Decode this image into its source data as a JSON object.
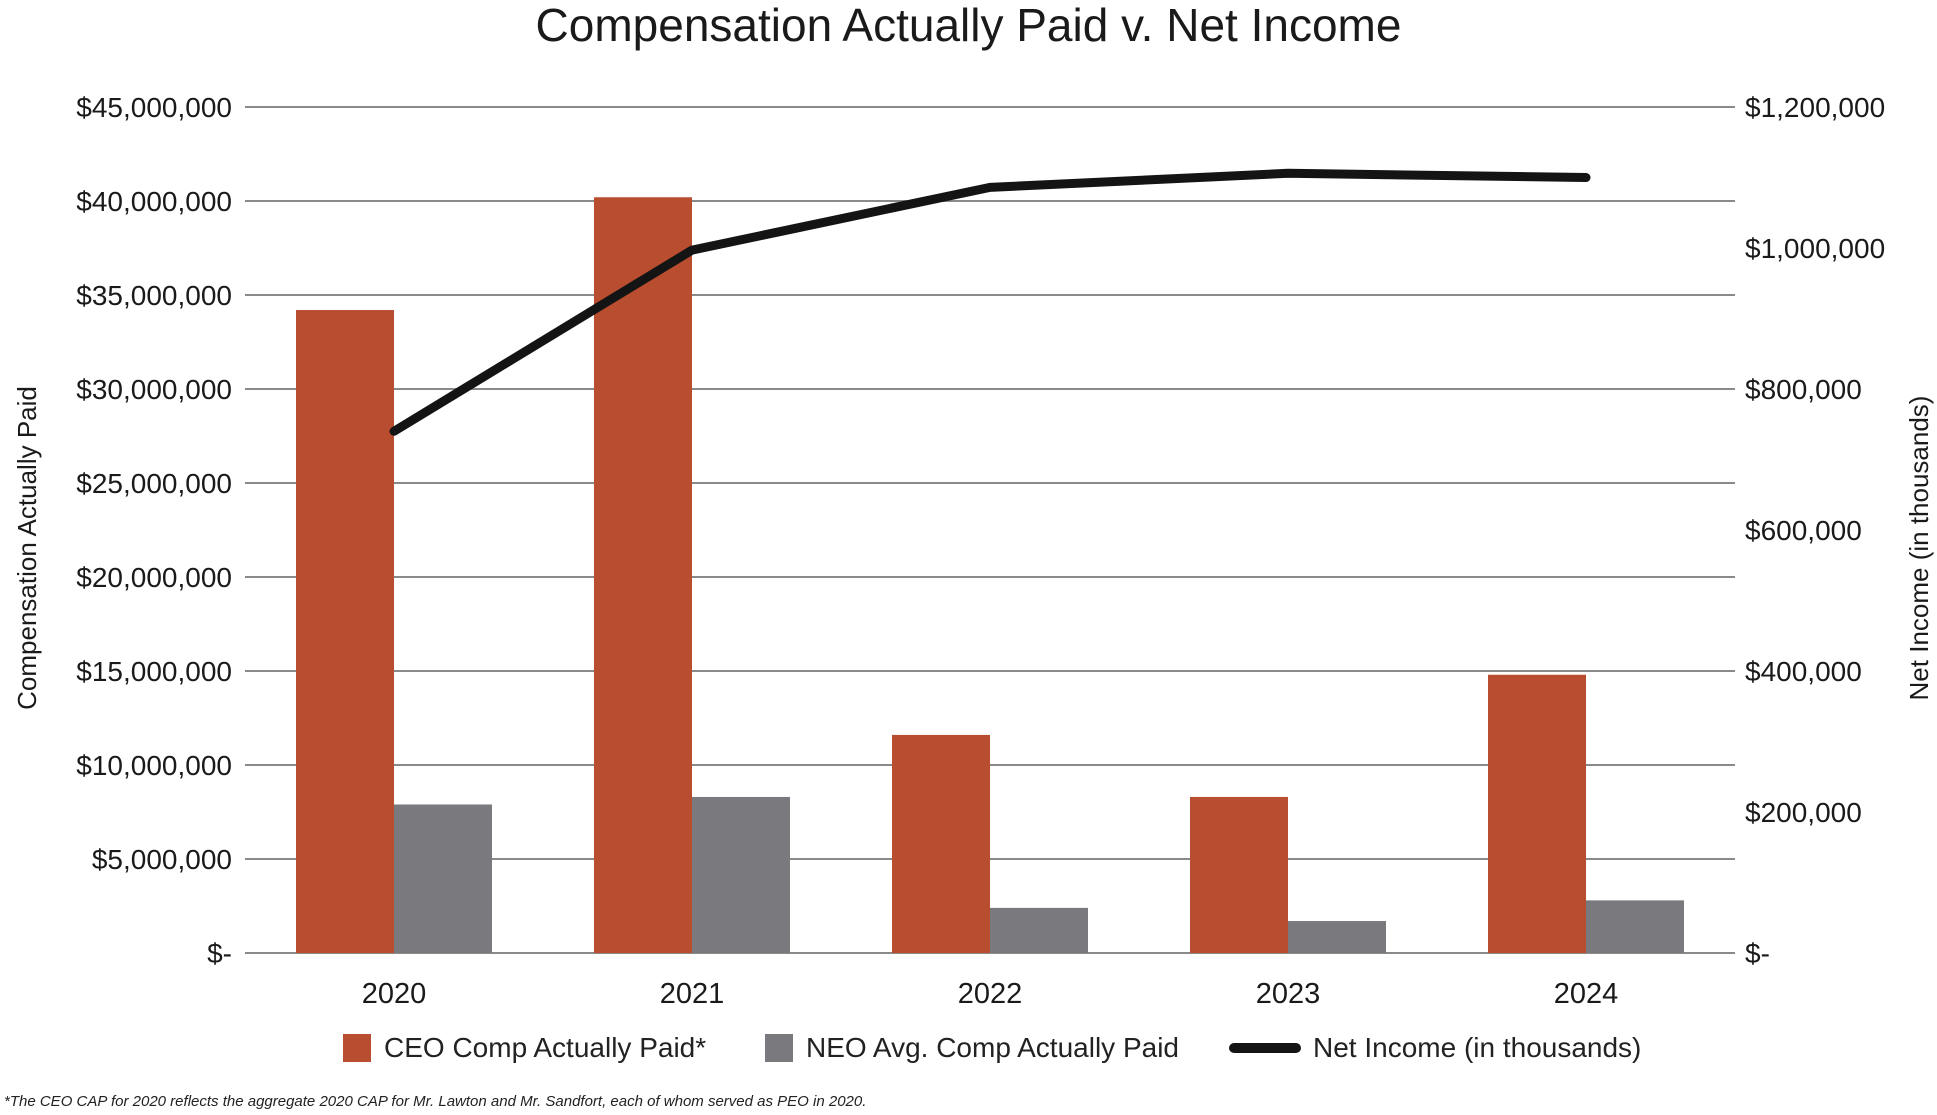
{
  "chart_data": {
    "type": "bar",
    "title": "Compensation Actually Paid v. Net Income",
    "categories": [
      "2020",
      "2021",
      "2022",
      "2023",
      "2024"
    ],
    "series": [
      {
        "name": "CEO Comp Actually Paid*",
        "kind": "bar",
        "axis": "left",
        "color": "#b94d30",
        "values": [
          34200000,
          40200000,
          11600000,
          8300000,
          14800000
        ]
      },
      {
        "name": "NEO Avg. Comp Actually Paid",
        "kind": "bar",
        "axis": "left",
        "color": "#7a797d",
        "values": [
          7900000,
          8300000,
          2400000,
          1700000,
          2800000
        ]
      },
      {
        "name": "Net Income (in thousands)",
        "kind": "line",
        "axis": "right",
        "color": "#141414",
        "values": [
          740000,
          997000,
          1086000,
          1106000,
          1100000
        ]
      }
    ],
    "y_left": {
      "label": "Compensation Actually Paid",
      "range": [
        0,
        45000000
      ],
      "ticks": [
        0,
        5000000,
        10000000,
        15000000,
        20000000,
        25000000,
        30000000,
        35000000,
        40000000,
        45000000
      ],
      "tick_labels": [
        "$-",
        "$5,000,000",
        "$10,000,000",
        "$15,000,000",
        "$20,000,000",
        "$25,000,000",
        "$30,000,000",
        "$35,000,000",
        "$40,000,000",
        "$45,000,000"
      ]
    },
    "y_right": {
      "label": "Net Income (in thousands)",
      "range": [
        0,
        1200000
      ],
      "ticks": [
        0,
        200000,
        400000,
        600000,
        800000,
        1000000,
        1200000
      ],
      "tick_labels": [
        "$-",
        "$200,000",
        "$400,000",
        "$600,000",
        "$800,000",
        "$1,000,000",
        "$1,200,000"
      ]
    },
    "grid": true,
    "legend_position": "bottom"
  },
  "legend": {
    "ceo_label": "CEO Comp Actually Paid*",
    "neo_label": "NEO Avg. Comp Actually Paid",
    "net_label": "Net Income (in thousands)"
  },
  "footnote": "*The CEO CAP for 2020 reflects the aggregate 2020 CAP for Mr. Lawton and Mr. Sandfort, each of whom served as PEO in 2020.",
  "colors": {
    "ceo": "#b94d30",
    "neo": "#7a797d",
    "net_income": "#141414",
    "grid": "#8a8a8a"
  }
}
